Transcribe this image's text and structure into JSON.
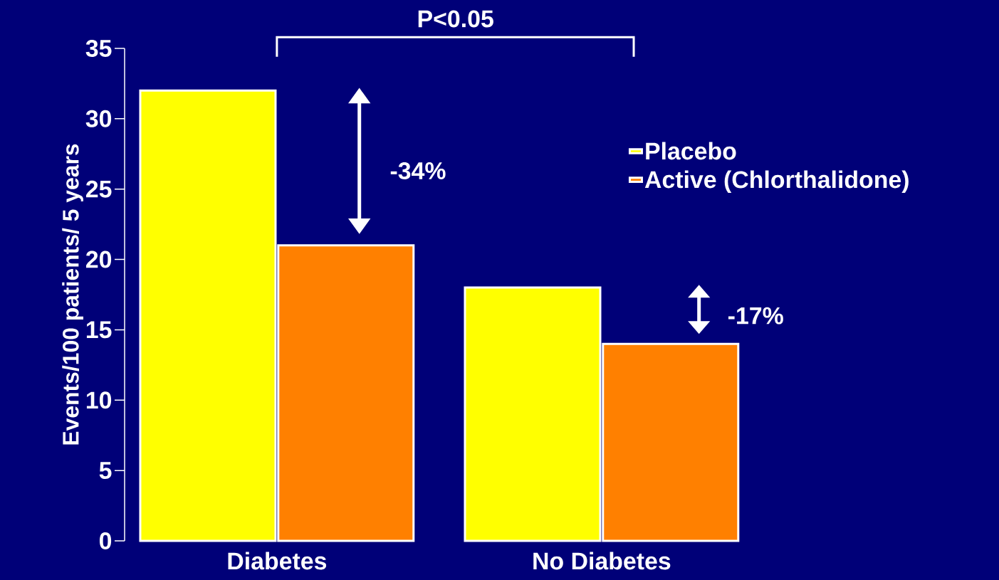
{
  "chart_data": {
    "type": "bar",
    "ylabel": "Events/100 patients/ 5 years",
    "categories": [
      "Diabetes",
      "No Diabetes"
    ],
    "series": [
      {
        "name": "Placebo",
        "color": "#ffff00",
        "values": [
          32,
          18
        ]
      },
      {
        "name": "Active (Chlorthalidone)",
        "color": "#ff8000",
        "values": [
          21,
          14
        ]
      }
    ],
    "ylim": [
      0,
      35
    ],
    "yticks": [
      0,
      5,
      10,
      15,
      20,
      25,
      30,
      35
    ],
    "legend": "right",
    "annotations": [
      "P<0.05",
      "-34%",
      "-17%"
    ]
  }
}
